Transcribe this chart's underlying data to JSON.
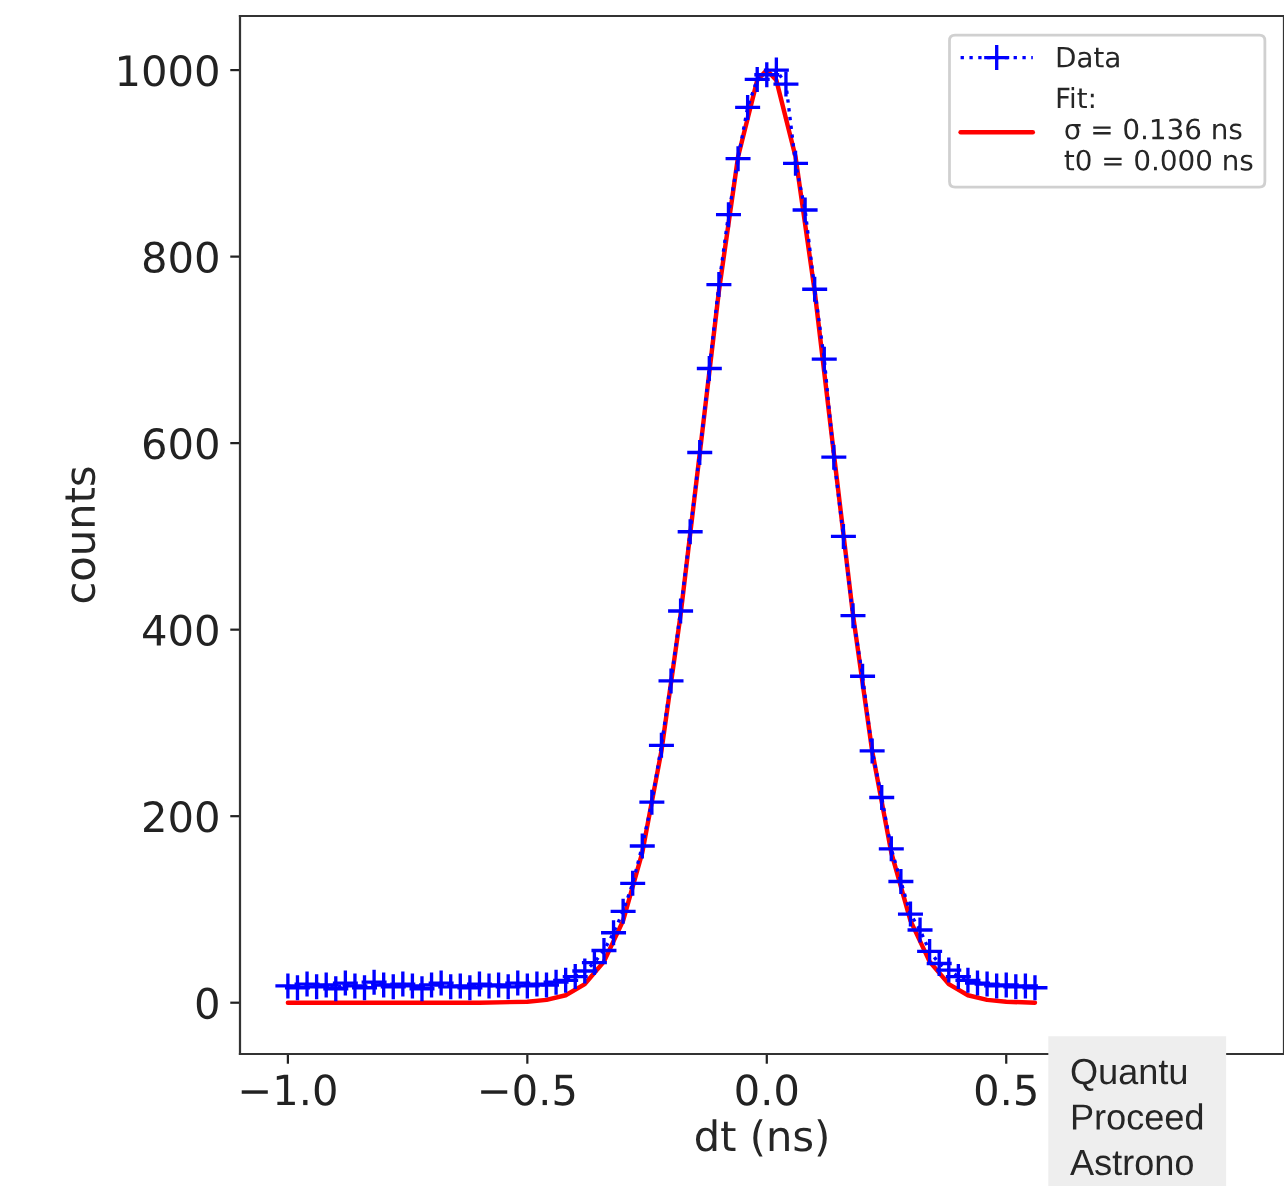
{
  "chart_data": {
    "type": "line",
    "xlabel": "dt (ns)",
    "ylabel": "counts",
    "xlim": [
      -1.1,
      1.08
    ],
    "xticks": [
      {
        "value": -1.0,
        "label": "−1.0"
      },
      {
        "value": -0.5,
        "label": "−0.5"
      },
      {
        "value": 0.0,
        "label": "0.0"
      },
      {
        "value": 0.5,
        "label": "0.5"
      }
    ],
    "ylim": [
      -55,
      1058
    ],
    "yticks": [
      0,
      200,
      400,
      600,
      800,
      1000
    ],
    "grid": false,
    "legend": "top right",
    "series": [
      {
        "name": "Data",
        "color": "#0000ff",
        "marker": "cross",
        "line_style": "dotted",
        "x": [
          -1.0,
          -0.98,
          -0.96,
          -0.94,
          -0.92,
          -0.9,
          -0.88,
          -0.86,
          -0.84,
          -0.82,
          -0.8,
          -0.78,
          -0.76,
          -0.74,
          -0.72,
          -0.7,
          -0.68,
          -0.66,
          -0.64,
          -0.62,
          -0.6,
          -0.58,
          -0.56,
          -0.54,
          -0.52,
          -0.5,
          -0.48,
          -0.46,
          -0.44,
          -0.42,
          -0.4,
          -0.38,
          -0.36,
          -0.34,
          -0.32,
          -0.3,
          -0.28,
          -0.26,
          -0.24,
          -0.22,
          -0.2,
          -0.18,
          -0.16,
          -0.14,
          -0.12,
          -0.1,
          -0.08,
          -0.06,
          -0.04,
          -0.02,
          0.0,
          0.02,
          0.04,
          0.06,
          0.08,
          0.1,
          0.12,
          0.14,
          0.16,
          0.18,
          0.2,
          0.22,
          0.24,
          0.26,
          0.28,
          0.3,
          0.32,
          0.34,
          0.36,
          0.38,
          0.4,
          0.42,
          0.44,
          0.46,
          0.48,
          0.5,
          0.52,
          0.54,
          0.56
        ],
        "values": [
          18,
          16,
          20,
          17,
          19,
          15,
          21,
          18,
          16,
          22,
          19,
          17,
          20,
          18,
          15,
          19,
          21,
          17,
          18,
          16,
          20,
          18,
          19,
          17,
          21,
          18,
          20,
          19,
          22,
          24,
          28,
          34,
          43,
          56,
          75,
          98,
          128,
          168,
          215,
          276,
          345,
          420,
          505,
          590,
          680,
          770,
          845,
          905,
          960,
          990,
          995,
          1000,
          985,
          900,
          850,
          765,
          690,
          585,
          500,
          415,
          350,
          270,
          220,
          165,
          130,
          95,
          78,
          55,
          42,
          35,
          28,
          24,
          21,
          20,
          18,
          19,
          17,
          18,
          16
        ]
      },
      {
        "name": "Fit:\n σ = 0.136 ns\n t0 = 0.000 ns",
        "color": "#ff0000",
        "marker": "none",
        "line_style": "solid",
        "x": [
          -1.0,
          -0.8,
          -0.6,
          -0.5,
          -0.46,
          -0.42,
          -0.38,
          -0.34,
          -0.3,
          -0.26,
          -0.22,
          -0.18,
          -0.14,
          -0.1,
          -0.06,
          -0.02,
          0.0,
          0.02,
          0.06,
          0.1,
          0.14,
          0.18,
          0.22,
          0.26,
          0.3,
          0.34,
          0.38,
          0.42,
          0.46,
          0.5,
          0.56
        ],
        "values": [
          0,
          0,
          0,
          1,
          3,
          8,
          20,
          44,
          88,
          161,
          270,
          416,
          589,
          763,
          907,
          989,
          1000,
          989,
          907,
          763,
          589,
          416,
          270,
          161,
          88,
          44,
          20,
          8,
          3,
          1,
          0
        ]
      }
    ],
    "annotations": [
      "Quantu\nProceed\nAstrono"
    ]
  }
}
